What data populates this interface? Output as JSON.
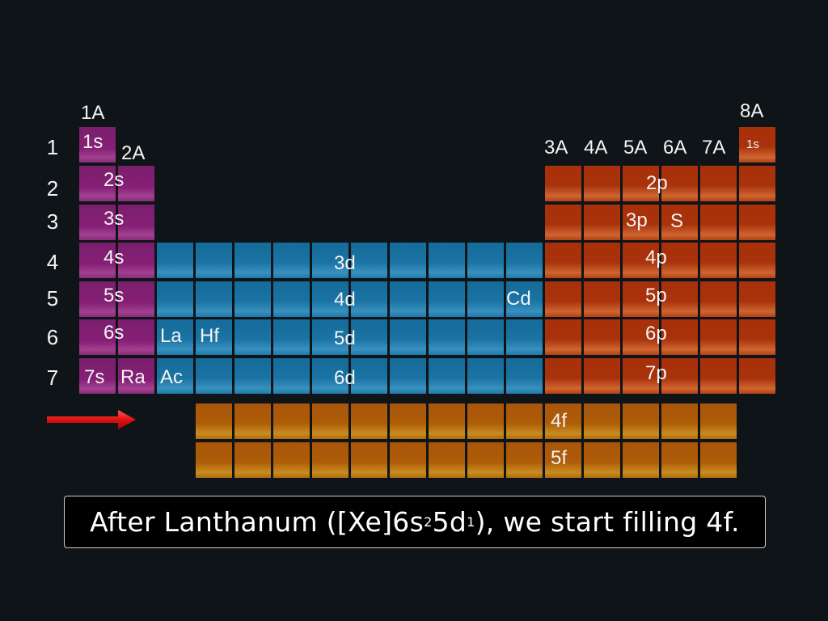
{
  "slide": {
    "group_labels": {
      "g1": "1A",
      "g2": "2A",
      "g13": "3A",
      "g14": "4A",
      "g15": "5A",
      "g16": "6A",
      "g17": "7A",
      "g18": "8A"
    },
    "period_labels": [
      "1",
      "2",
      "3",
      "4",
      "5",
      "6",
      "7"
    ],
    "block_labels": {
      "s1": "1s",
      "s2": "2s",
      "s3": "3s",
      "s4": "4s",
      "s5": "5s",
      "s6": "6s",
      "s7": "7s",
      "he": "1s",
      "p2": "2p",
      "p3": "3p",
      "p4": "4p",
      "p5": "5p",
      "p6": "6p",
      "p7": "7p",
      "d3": "3d",
      "d4": "4d",
      "d5": "5d",
      "d6": "6d",
      "f4": "4f",
      "f5": "5f"
    },
    "element_labels": {
      "Ra": "Ra",
      "La": "La",
      "Hf": "Hf",
      "Ac": "Ac",
      "Cd": "Cd",
      "S": "S"
    },
    "caption": {
      "prefix": "After Lanthanum ([Xe]6s",
      "sup1": "2",
      "mid": "5d",
      "sup2": "1",
      "suffix": "), we start filling 4f."
    },
    "colors": {
      "background": "#0f1418",
      "s_block": "#861f76",
      "d_block": "#1a73a3",
      "p_block": "#a8320b",
      "f_block": "#ad5c08",
      "arrow": "#e01010"
    },
    "arrow_icon": "right-arrow-icon"
  }
}
